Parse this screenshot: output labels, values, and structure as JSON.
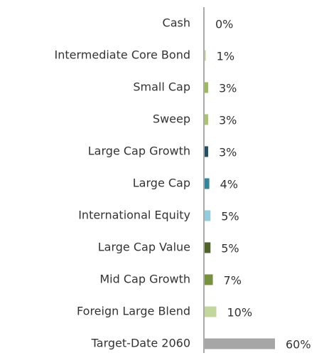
{
  "chart_data": {
    "type": "barh",
    "categories": [
      "Cash",
      "Intermediate Core Bond",
      "Small Cap",
      "Sweep",
      "Large Cap Growth",
      "Large Cap",
      "International Equity",
      "Large Cap Value",
      "Mid Cap Growth",
      "Foreign Large Blend",
      "Target-Date 2060"
    ],
    "values": [
      0,
      1,
      3,
      3,
      3,
      4,
      5,
      5,
      7,
      10,
      60
    ],
    "value_labels": [
      "0%",
      "1%",
      "3%",
      "3%",
      "3%",
      "4%",
      "5%",
      "5%",
      "7%",
      "10%",
      "60%"
    ],
    "colors": [
      "#ffffff",
      "#c6d9a0",
      "#9bbb59",
      "#a9c46c",
      "#1f5068",
      "#31859c",
      "#93cddd",
      "#4f6228",
      "#76923c",
      "#c3d69b",
      "#a6a6a6"
    ]
  }
}
